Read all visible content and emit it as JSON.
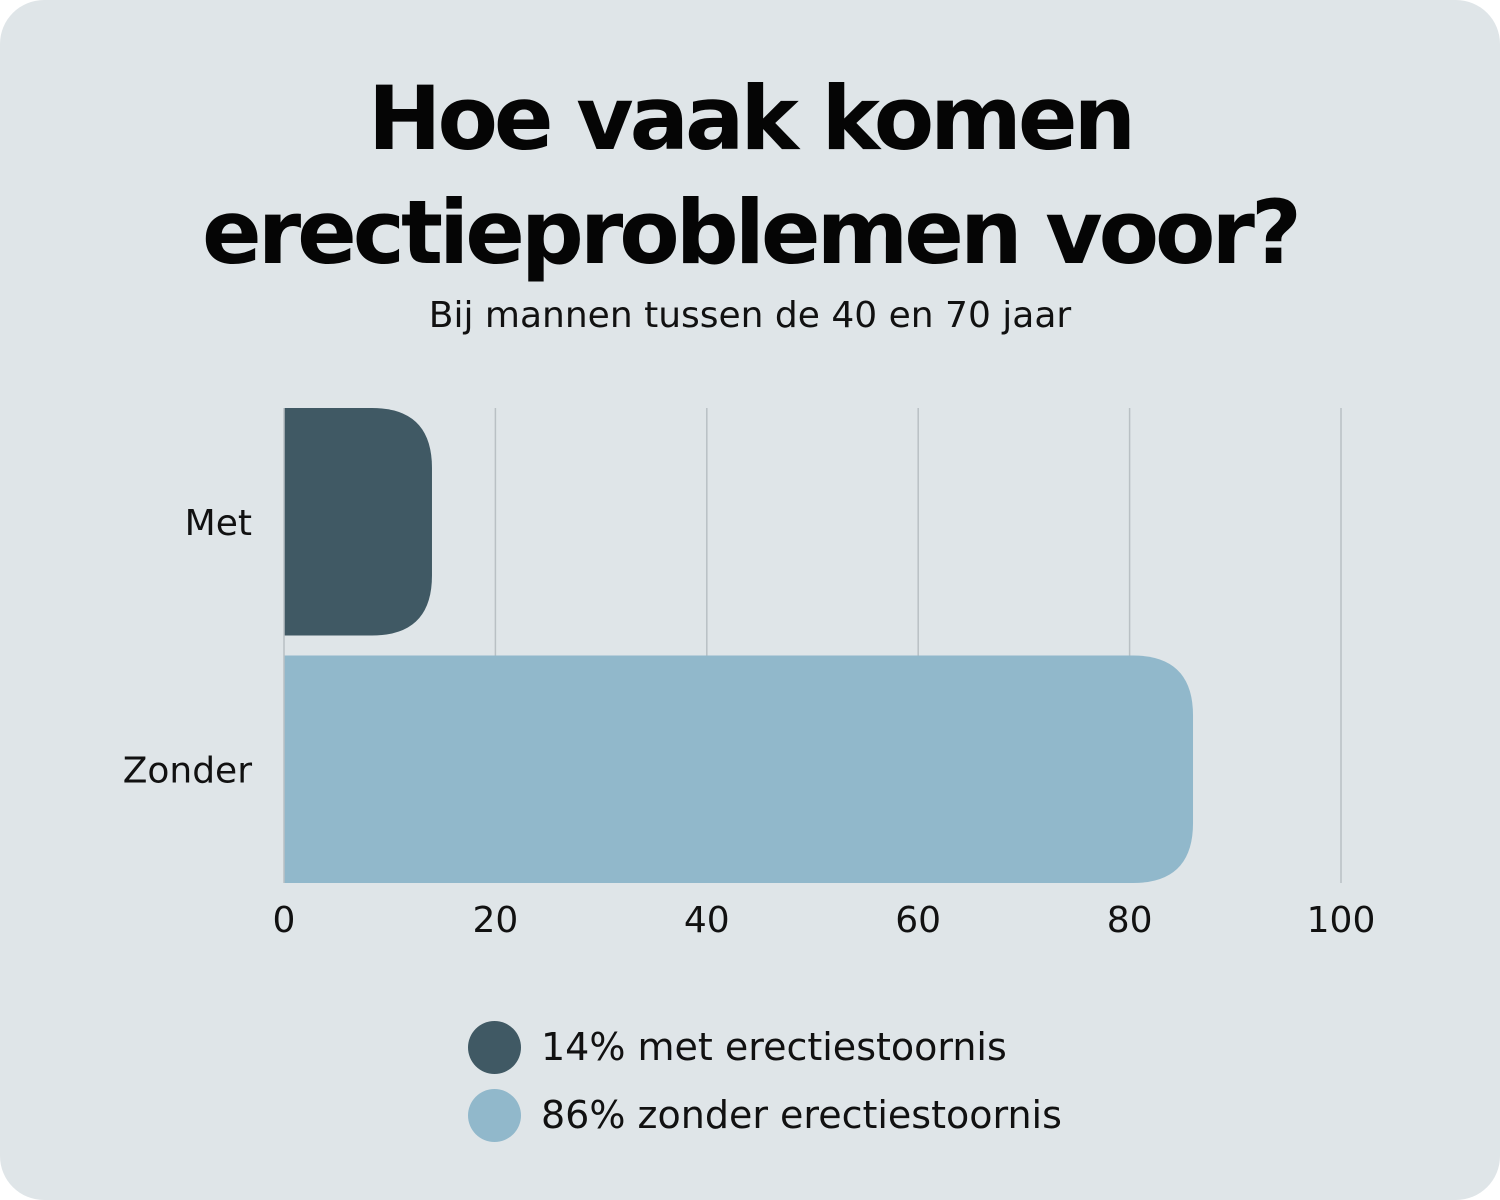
{
  "chart_data": {
    "type": "bar",
    "orientation": "horizontal",
    "title": "Hoe vaak komen erectieproblemen voor?",
    "subtitle": "Bij mannen tussen de 40 en 70 jaar",
    "categories": [
      "Met",
      "Zonder"
    ],
    "values": [
      14,
      86
    ],
    "colors": [
      "#405964",
      "#91b8cb"
    ],
    "xlim": [
      0,
      100
    ],
    "xticks": [
      0,
      20,
      40,
      60,
      80,
      100
    ],
    "grid": true,
    "legend_position": "bottom-center",
    "legend": [
      {
        "label": "14% met erectiestoornis",
        "color": "#405964"
      },
      {
        "label": "86% zonder erectiestoornis",
        "color": "#91b8cb"
      }
    ]
  }
}
